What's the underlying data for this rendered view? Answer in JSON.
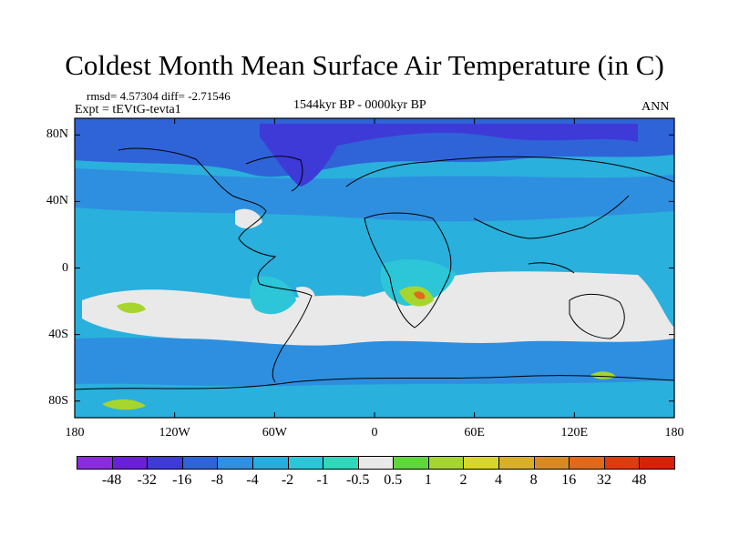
{
  "title": "Coldest Month Mean Surface Air Temperature (in C)",
  "stats": "rmsd= 4.57304 diff= -2.71546",
  "experiment": "Expt = tEVtG-tevta1",
  "period": "1544kyr BP - 0000kyr BP",
  "season": "ANN",
  "lat_labels": [
    "80N",
    "40N",
    "0",
    "40S",
    "80S"
  ],
  "lon_labels": [
    "180",
    "120W",
    "60W",
    "0",
    "60E",
    "120E",
    "180"
  ],
  "colorbar": {
    "labels": [
      "-48",
      "-32",
      "-16",
      "-8",
      "-4",
      "-2",
      "-1",
      "-0.5",
      "0.5",
      "1",
      "2",
      "4",
      "8",
      "16",
      "32",
      "48"
    ],
    "colors": [
      "#8a2be2",
      "#6a1fd8",
      "#3e3ad8",
      "#2f63d8",
      "#2f8fe0",
      "#28acde",
      "#2cc6d8",
      "#2ed8b8",
      "#e9e9e9",
      "#5fd63a",
      "#a6d62e",
      "#d8d62a",
      "#d8b028",
      "#d88a22",
      "#e06a1a",
      "#e03a10",
      "#d8200a"
    ]
  },
  "colors": {
    "ocean_base": "#2ab0dc",
    "band_cool": "#2e8fe0",
    "arctic_cold": "#2f63d8",
    "arctic_very_cold": "#3e3ad8",
    "near_zero": "#e9e9e9",
    "teal": "#2cc6d8",
    "warm": "#a6d62e",
    "hot": "#e06a1a"
  }
}
